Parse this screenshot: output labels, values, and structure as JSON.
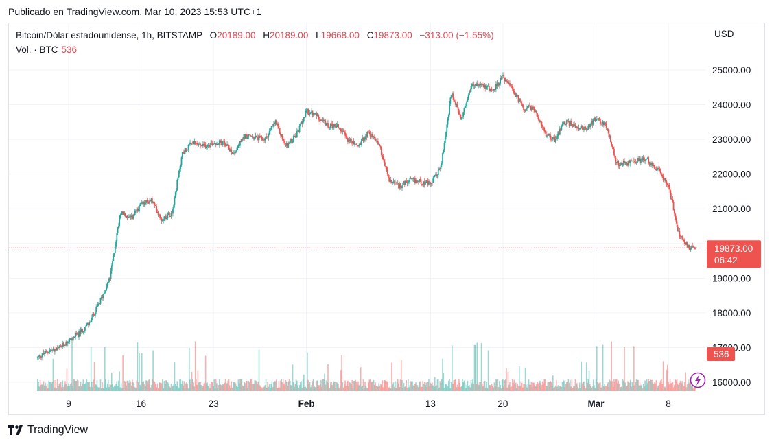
{
  "published": "Publicado en TradingView.com, Mar 10, 2023 15:53 UTC+1",
  "brand": "TradingView",
  "legend": {
    "symbol": "Bitcoin/Dólar estadounidense, 1h, BITSTAMP",
    "open_label": "O",
    "open": "20189.00",
    "high_label": "H",
    "high": "20189.00",
    "low_label": "L",
    "low": "19668.00",
    "close_label": "C",
    "close": "19873.00",
    "change": "−313.00 (−1.55%)"
  },
  "volume": {
    "label": "Vol. · BTC",
    "value": "536"
  },
  "colors": {
    "up": "#26a69a",
    "down": "#ef5350",
    "price_tag": "#ef5350",
    "grid": "#f0f3fa"
  },
  "icons": [
    "tradingview-logo-icon",
    "lightning-icon"
  ],
  "chart_data": {
    "type": "candlestick",
    "currency": "USD",
    "ylim": [
      15850,
      25500
    ],
    "y_ticks": [
      "16000.00",
      "17000.00",
      "18000.00",
      "19000.00",
      "20000.00",
      "21000.00",
      "22000.00",
      "23000.00",
      "24000.00",
      "25000.00"
    ],
    "x_ticks": [
      "9",
      "16",
      "23",
      "Feb",
      "13",
      "20",
      "Mar",
      "8"
    ],
    "x_tick_dates": [
      "2023-01-09",
      "2023-01-16",
      "2023-01-23",
      "2023-02-01",
      "2023-02-13",
      "2023-02-20",
      "2023-03-01",
      "2023-03-08"
    ],
    "last_price": {
      "price": "19873.00",
      "countdown": "06:42"
    },
    "last_volume": "536",
    "price_path": [
      [
        "2023-01-06",
        16700
      ],
      [
        "2023-01-07",
        16900
      ],
      [
        "2023-01-08",
        16950
      ],
      [
        "2023-01-09",
        17200
      ],
      [
        "2023-01-10",
        17400
      ],
      [
        "2023-01-11",
        17700
      ],
      [
        "2023-01-12",
        18300
      ],
      [
        "2023-01-13",
        19000
      ],
      [
        "2023-01-14",
        20900
      ],
      [
        "2023-01-15",
        20700
      ],
      [
        "2023-01-16",
        21100
      ],
      [
        "2023-01-17",
        21250
      ],
      [
        "2023-01-18",
        20700
      ],
      [
        "2023-01-19",
        20900
      ],
      [
        "2023-01-20",
        22600
      ],
      [
        "2023-01-21",
        22900
      ],
      [
        "2023-01-22",
        22800
      ],
      [
        "2023-01-23",
        22900
      ],
      [
        "2023-01-24",
        22900
      ],
      [
        "2023-01-25",
        22600
      ],
      [
        "2023-01-26",
        23100
      ],
      [
        "2023-01-27",
        23050
      ],
      [
        "2023-01-28",
        23000
      ],
      [
        "2023-01-29",
        23500
      ],
      [
        "2023-01-30",
        22800
      ],
      [
        "2023-01-31",
        23100
      ],
      [
        "2023-02-01",
        23800
      ],
      [
        "2023-02-02",
        23700
      ],
      [
        "2023-02-03",
        23400
      ],
      [
        "2023-02-04",
        23400
      ],
      [
        "2023-02-05",
        23000
      ],
      [
        "2023-02-06",
        22800
      ],
      [
        "2023-02-07",
        23200
      ],
      [
        "2023-02-08",
        22900
      ],
      [
        "2023-02-09",
        21800
      ],
      [
        "2023-02-10",
        21650
      ],
      [
        "2023-02-11",
        21800
      ],
      [
        "2023-02-12",
        21800
      ],
      [
        "2023-02-13",
        21700
      ],
      [
        "2023-02-14",
        22200
      ],
      [
        "2023-02-15",
        24300
      ],
      [
        "2023-02-16",
        23600
      ],
      [
        "2023-02-17",
        24600
      ],
      [
        "2023-02-18",
        24600
      ],
      [
        "2023-02-19",
        24400
      ],
      [
        "2023-02-20",
        24800
      ],
      [
        "2023-02-21",
        24400
      ],
      [
        "2023-02-22",
        23900
      ],
      [
        "2023-02-23",
        23900
      ],
      [
        "2023-02-24",
        23200
      ],
      [
        "2023-02-25",
        23000
      ],
      [
        "2023-02-26",
        23500
      ],
      [
        "2023-02-27",
        23400
      ],
      [
        "2023-02-28",
        23300
      ],
      [
        "2023-03-01",
        23600
      ],
      [
        "2023-03-02",
        23400
      ],
      [
        "2023-03-03",
        22300
      ],
      [
        "2023-03-04",
        22300
      ],
      [
        "2023-03-05",
        22400
      ],
      [
        "2023-03-06",
        22400
      ],
      [
        "2023-03-07",
        22100
      ],
      [
        "2023-03-08",
        21700
      ],
      [
        "2023-03-09",
        20300
      ],
      [
        "2023-03-10",
        19873
      ]
    ]
  }
}
